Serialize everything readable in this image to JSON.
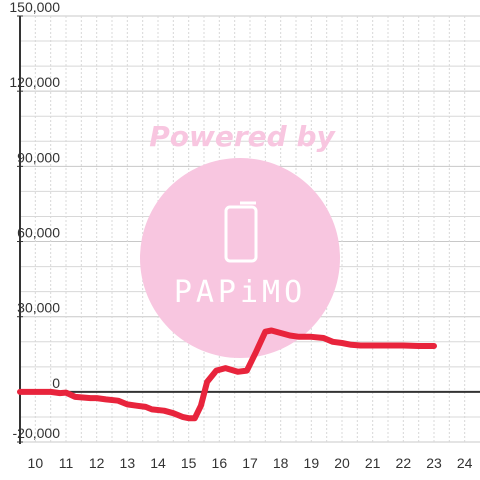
{
  "chart_data": {
    "type": "line",
    "title": "",
    "xlabel": "",
    "ylabel": "",
    "xlim": [
      9.5,
      24.5
    ],
    "ylim": [
      -20000,
      150000
    ],
    "x_ticks": [
      10,
      11,
      12,
      13,
      14,
      15,
      16,
      17,
      18,
      19,
      20,
      21,
      22,
      23,
      24
    ],
    "y_ticks": [
      -20000,
      0,
      30000,
      60000,
      90000,
      120000,
      150000
    ],
    "x_tick_labels": [
      "10",
      "11",
      "12",
      "13",
      "14",
      "15",
      "16",
      "17",
      "18",
      "19",
      "20",
      "21",
      "22",
      "23",
      "24"
    ],
    "y_tick_labels": [
      "-20,000",
      "0",
      "30,000",
      "60,000",
      "90,000",
      "120,000",
      "150,000"
    ],
    "y_minor_step": 10000,
    "x_minor_step": 0.5,
    "grid": true,
    "series": [
      {
        "color": "#e8243c",
        "points": [
          [
            9.5,
            0
          ],
          [
            10.5,
            0
          ],
          [
            10.8,
            -500
          ],
          [
            11.0,
            -300
          ],
          [
            11.3,
            -2000
          ],
          [
            11.8,
            -2500
          ],
          [
            12.0,
            -2500
          ],
          [
            12.3,
            -3000
          ],
          [
            12.7,
            -3500
          ],
          [
            13.0,
            -5000
          ],
          [
            13.3,
            -5500
          ],
          [
            13.6,
            -6000
          ],
          [
            13.8,
            -7000
          ],
          [
            14.2,
            -7500
          ],
          [
            14.5,
            -8500
          ],
          [
            14.8,
            -10000
          ],
          [
            15.0,
            -10500
          ],
          [
            15.2,
            -10500
          ],
          [
            15.4,
            -5500
          ],
          [
            15.6,
            4000
          ],
          [
            15.9,
            8500
          ],
          [
            16.2,
            9500
          ],
          [
            16.6,
            8000
          ],
          [
            16.9,
            8500
          ],
          [
            17.2,
            16000
          ],
          [
            17.5,
            24000
          ],
          [
            17.7,
            24500
          ],
          [
            18.0,
            23500
          ],
          [
            18.3,
            22500
          ],
          [
            18.6,
            22000
          ],
          [
            19.0,
            22000
          ],
          [
            19.4,
            21500
          ],
          [
            19.7,
            20000
          ],
          [
            20.0,
            19500
          ],
          [
            20.3,
            18800
          ],
          [
            20.6,
            18500
          ],
          [
            21.0,
            18500
          ],
          [
            21.5,
            18500
          ],
          [
            22.0,
            18500
          ],
          [
            22.5,
            18300
          ],
          [
            23.0,
            18300
          ]
        ]
      }
    ],
    "colors": {
      "axis": "#333333",
      "zero_line": "#333333",
      "grid_major": "#c8c8c8",
      "grid_minor": "#d8d8d8"
    }
  },
  "watermark": {
    "text": "Powered by",
    "logo_text": "PAPiMO",
    "color": "#f8c6e0"
  }
}
